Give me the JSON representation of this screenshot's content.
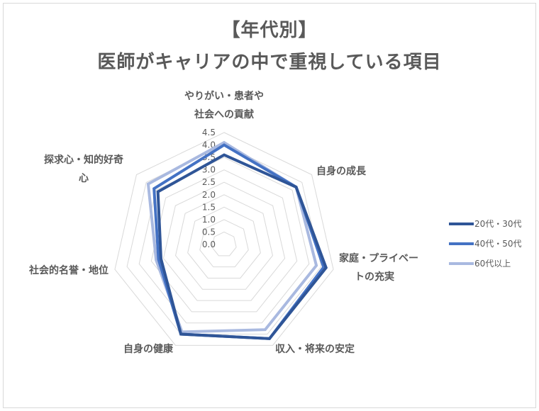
{
  "chart_data": {
    "type": "radar",
    "title": "【年代別】",
    "subtitle": "医師がキャリアの中で重視している項目",
    "categories": [
      "やりがい・患者や社会への貢献",
      "自身の成長",
      "家庭・プライベートの充実",
      "収入・将来の安定",
      "自身の健康",
      "社会的名誉・地位",
      "探求心・知的好奇心"
    ],
    "series": [
      {
        "name": "20代・30代",
        "color": "#2F5597",
        "values": [
          3.6,
          3.7,
          4.2,
          4.2,
          4.0,
          2.6,
          3.4
        ]
      },
      {
        "name": "40代・50代",
        "color": "#4472C4",
        "values": [
          4.0,
          3.7,
          4.1,
          4.2,
          4.0,
          2.7,
          3.6
        ]
      },
      {
        "name": "60代以上",
        "color": "#A9B9E0",
        "values": [
          4.1,
          3.7,
          3.8,
          3.8,
          3.9,
          2.8,
          3.9
        ]
      }
    ],
    "rlim": [
      0,
      4.5
    ],
    "ticks": [
      "0.0",
      "0.5",
      "1.0",
      "1.5",
      "2.0",
      "2.5",
      "3.0",
      "3.5",
      "4.0",
      "4.5"
    ],
    "grid": true,
    "legend_position": "right"
  },
  "title_lines": [
    "【年代別】",
    "医師がキャリアの中で重視している項目"
  ],
  "axis_label_lines": [
    [
      "やりがい・患者や",
      "社会への貢献"
    ],
    [
      "自身の成長"
    ],
    [
      "家庭・プライベー",
      "トの充実"
    ],
    [
      "収入・将来の安定"
    ],
    [
      "自身の健康"
    ],
    [
      "社会的名誉・地位"
    ],
    [
      "探求心・知的好奇",
      "心"
    ]
  ]
}
